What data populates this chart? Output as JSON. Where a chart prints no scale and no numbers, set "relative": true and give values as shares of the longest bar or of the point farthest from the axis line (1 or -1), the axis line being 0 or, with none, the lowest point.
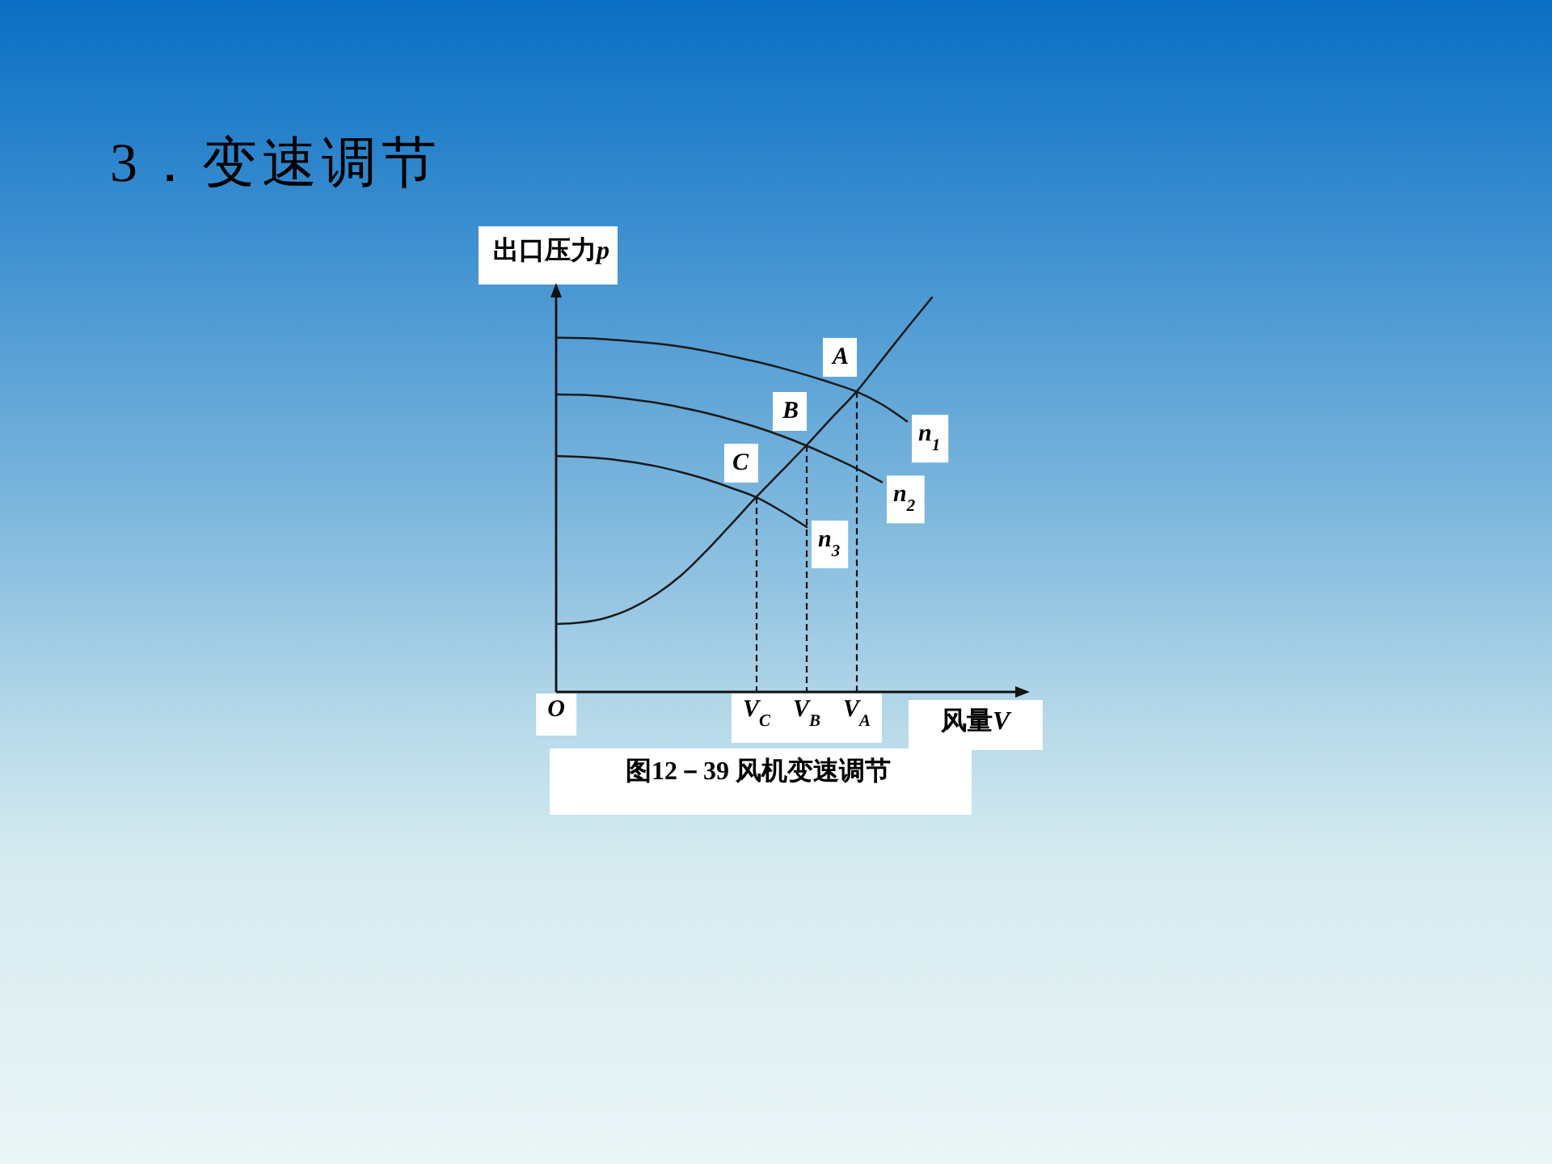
{
  "chart_data": {
    "type": "line",
    "title": "3．变速调节",
    "xlabel": "风量V",
    "ylabel": "出口压力p",
    "relative": true,
    "categories": [
      "O",
      null,
      null,
      null,
      null,
      null,
      null,
      null,
      "V$_{C}$",
      null,
      "V$_{B}$",
      null,
      "V$_{A}$",
      null,
      null,
      null,
      null,
      null,
      null
    ],
    "series": [
      {
        "name": "n$_{1}$",
        "color": "#1a1a1a",
        "values": [
          0.898,
          0.897,
          0.894,
          0.889,
          0.883,
          0.875,
          0.864,
          0.851,
          0.837,
          0.821,
          0.803,
          0.783,
          0.761,
          0.729,
          0.686,
          null,
          null,
          null,
          null
        ]
      },
      {
        "name": "n$_{2}$",
        "color": "#1a1a1a",
        "values": [
          0.754,
          0.753,
          0.749,
          0.742,
          0.733,
          0.721,
          0.707,
          0.69,
          0.671,
          0.649,
          0.624,
          0.596,
          0.566,
          0.532,
          null,
          null,
          null,
          null,
          null
        ]
      },
      {
        "name": "n$_{3}$",
        "color": "#1a1a1a",
        "values": [
          0.598,
          0.596,
          0.591,
          0.583,
          0.572,
          0.557,
          0.539,
          0.517,
          0.493,
          0.458,
          0.418,
          null,
          null,
          null,
          null,
          null,
          null,
          null,
          null
        ]
      },
      {
        "color": "#1a1a1a",
        "values": [
          0.172,
          0.176,
          0.188,
          0.212,
          0.248,
          0.296,
          0.358,
          0.426,
          0.495,
          0.56,
          0.626,
          0.695,
          0.762,
          0.842,
          0.922,
          1,
          null,
          null,
          null
        ]
      }
    ],
    "annotations": [
      {
        "text": "A",
        "x": "V$_{A}$",
        "y": 0.762
      },
      {
        "text": "B",
        "x": "V$_{B}$",
        "y": 0.625
      },
      {
        "text": "C",
        "x": "V$_{C}$",
        "y": 0.494
      },
      "图12－39 风机变速调节"
    ]
  }
}
